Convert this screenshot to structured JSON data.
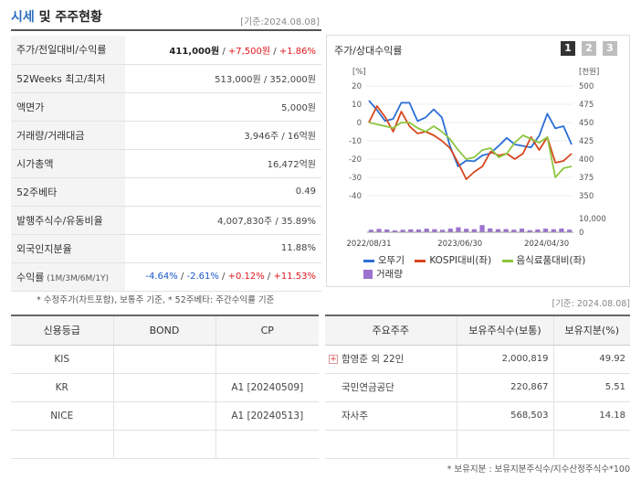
{
  "header": {
    "title_part1": "시세",
    "title_part2": " 및 주주현황",
    "date": "[기준:2024.08.08]"
  },
  "info_rows": [
    {
      "label": "주가/전일대비/수익률",
      "value_main": "411,000원",
      "value_sep1": " / ",
      "value_change": "+7,500원",
      "value_sep2": " / ",
      "value_rate": "+1.86%"
    },
    {
      "label": "52Weeks 최고/최저",
      "value": "513,000원 / 352,000원"
    },
    {
      "label": "액면가",
      "value": "5,000원"
    },
    {
      "label": "거래량/거래대금",
      "value": "3,946주 / 16억원"
    },
    {
      "label": "시가총액",
      "value": "16,472억원"
    },
    {
      "label": "52주베타",
      "value": "0.49"
    },
    {
      "label": "발행주식수/유동비율",
      "value": "4,007,830주 / 35.89%"
    },
    {
      "label": "외국인지분율",
      "value": "11.88%"
    },
    {
      "label": "수익률",
      "label_sub": " (1M/3M/6M/1Y)",
      "r1": "-4.64%",
      "r2": "-2.61%",
      "r3": "+0.12%",
      "r4": "+11.53%",
      "sep": " / "
    }
  ],
  "notes": {
    "left": "* 수정주가(차트포함), 보통주 기준, * 52주베타: 주간수익률 기준",
    "right": "[기준: 2024.08.08]",
    "bottom": "* 보유지분 : 보유지분주식수/지수산정주식수*100"
  },
  "chart_panel": {
    "title": "주가/상대수익률",
    "pages": [
      "1",
      "2",
      "3"
    ]
  },
  "chart_data": {
    "type": "line",
    "title": "주가/상대수익률",
    "left_axis_unit": "[%]",
    "right_axis_unit": "[천원]",
    "left_ticks": [
      20,
      10,
      0,
      -10,
      -20,
      -30,
      -40
    ],
    "left_ylim": [
      -40,
      20
    ],
    "right_ticks": [
      500,
      475,
      450,
      425,
      400,
      375,
      350
    ],
    "right_ylim": [
      350,
      500
    ],
    "volume_ticks": [
      10000,
      0
    ],
    "volume_label_top": "10,000",
    "volume_label_bottom": "0",
    "x_labels": [
      "2022/08/31",
      "2023/06/30",
      "2024/04/30"
    ],
    "series": [
      {
        "name": "오뚜기",
        "color": "#2b6fd6",
        "axis": "right",
        "values": [
          480,
          467,
          452,
          455,
          477,
          477,
          452,
          457,
          468,
          457,
          418,
          390,
          398,
          397,
          405,
          408,
          418,
          429,
          420,
          418,
          416,
          432,
          462,
          442,
          445,
          420
        ]
      },
      {
        "name": "KOSPI대비(좌)",
        "color": "#d6461e",
        "axis": "left",
        "values": [
          0,
          9,
          3,
          -5,
          6,
          -2,
          -6,
          -5,
          -7,
          -10,
          -14,
          -22,
          -31,
          -27,
          -24,
          -16,
          -18,
          -17,
          -20,
          -17,
          -8,
          -15,
          -8,
          -22,
          -21,
          -17
        ]
      },
      {
        "name": "음식료품대비(좌)",
        "color": "#8cc63f",
        "axis": "left",
        "values": [
          0,
          -1,
          -2,
          -3,
          0,
          0,
          -3,
          -5,
          -2,
          -5,
          -9,
          -15,
          -20,
          -19,
          -15,
          -14,
          -19,
          -17,
          -11,
          -7,
          -9,
          -11,
          -8,
          -30,
          -25,
          -24
        ]
      }
    ],
    "volume": {
      "name": "거래량",
      "color": "#9b72cf",
      "values": [
        1800,
        2400,
        2000,
        1300,
        1800,
        2100,
        2000,
        2600,
        2200,
        1800,
        2600,
        3600,
        2500,
        2200,
        5200,
        2800,
        2200,
        2300,
        1900,
        2600,
        1500,
        2000,
        2600,
        2200,
        2700,
        1900
      ]
    }
  },
  "legend": {
    "s1": "오뚜기",
    "s2": "KOSPI대비(좌)",
    "s3": "음식료품대비(좌)",
    "vol": "거래량",
    "colors": {
      "s1": "#2b6fd6",
      "s2": "#d6461e",
      "s3": "#8cc63f",
      "vol": "#9b72cf"
    }
  },
  "credit_table": {
    "headers": [
      "신용등급",
      "BOND",
      "CP"
    ],
    "rows": [
      [
        "KIS",
        "",
        ""
      ],
      [
        "KR",
        "",
        "A1 [20240509]"
      ],
      [
        "NICE",
        "",
        "A1 [20240513]"
      ],
      [
        "",
        "",
        ""
      ]
    ]
  },
  "holders_table": {
    "headers": [
      "주요주주",
      "보유주식수(보통)",
      "보유지분(%)"
    ],
    "plus_icon": "+",
    "rows": [
      {
        "name": "함영준 외 22인",
        "shares": "2,000,819",
        "pct": "49.92"
      },
      {
        "name": "국민연금공단",
        "shares": "220,867",
        "pct": "5.51"
      },
      {
        "name": "자사주",
        "shares": "568,503",
        "pct": "14.18"
      },
      {
        "name": "",
        "shares": "",
        "pct": ""
      }
    ]
  }
}
